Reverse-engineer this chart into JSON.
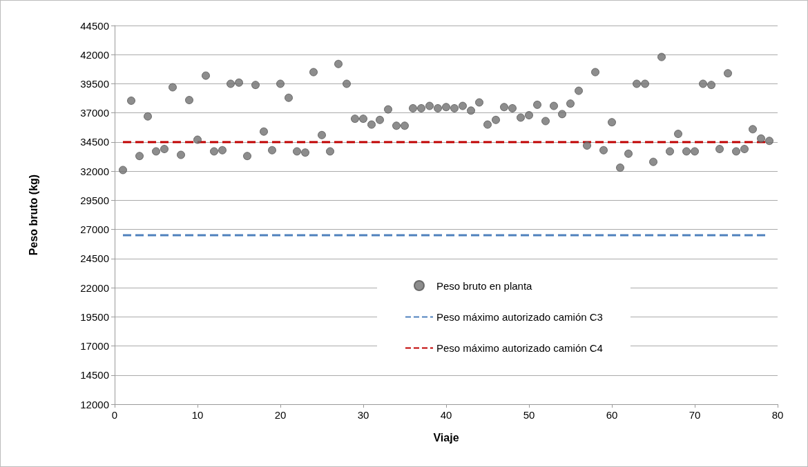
{
  "chart_data": {
    "type": "scatter",
    "xlabel": "Viaje",
    "ylabel": "Peso bruto (kg)",
    "x": [
      1,
      2,
      3,
      4,
      5,
      6,
      7,
      8,
      9,
      10,
      11,
      12,
      13,
      14,
      15,
      16,
      17,
      18,
      19,
      20,
      21,
      22,
      23,
      24,
      25,
      26,
      27,
      28,
      29,
      30,
      31,
      32,
      33,
      34,
      35,
      36,
      37,
      38,
      39,
      40,
      41,
      42,
      43,
      44,
      45,
      46,
      47,
      48,
      49,
      50,
      51,
      52,
      53,
      54,
      55,
      56,
      57,
      58,
      59,
      60,
      61,
      62,
      63,
      64,
      65,
      66,
      67,
      68,
      69,
      70,
      71,
      72,
      73,
      74,
      75,
      76,
      77,
      78,
      79
    ],
    "series": [
      {
        "name": "Peso bruto en planta",
        "color": "#707070",
        "values": [
          32100,
          38050,
          33300,
          36700,
          33700,
          33900,
          39200,
          33400,
          38100,
          34700,
          40200,
          33700,
          33800,
          39500,
          39600,
          33300,
          39400,
          35400,
          33800,
          39500,
          38300,
          33700,
          33600,
          40500,
          35100,
          33700,
          41200,
          39500,
          36500,
          36500,
          36000,
          36400,
          37300,
          35900,
          35900,
          37400,
          37400,
          37600,
          37400,
          37500,
          37400,
          37600,
          37200,
          37900,
          36000,
          36400,
          37500,
          37400,
          36600,
          36800,
          37700,
          36300,
          37600,
          36900,
          37800,
          38900,
          34200,
          40500,
          33800,
          36200,
          32300,
          33500,
          39500,
          39500,
          32800,
          41800,
          33700,
          35200,
          33700,
          33700,
          39500,
          39400,
          33900,
          40400,
          33700,
          33900,
          35600,
          34800,
          34600
        ]
      }
    ],
    "ref_lines": [
      {
        "axis": "y",
        "value": 26500,
        "label": "Peso máximo autorizado camión C3",
        "color": "#4f81bd",
        "line_style": "dashed"
      },
      {
        "axis": "y",
        "value": 34500,
        "label": "Peso máximo autorizado camión C4",
        "color": "#c00000",
        "line_style": "dashed"
      }
    ],
    "xlim": [
      0,
      80
    ],
    "xticks": [
      0,
      10,
      20,
      30,
      40,
      50,
      60,
      70,
      80
    ],
    "ylim": [
      12000,
      44500
    ],
    "yticks": [
      12000,
      14500,
      17000,
      19500,
      22000,
      24500,
      27000,
      29500,
      32000,
      34500,
      37000,
      39500,
      42000,
      44500
    ],
    "grid": "y",
    "legend": "bottom",
    "marker": "circle"
  }
}
